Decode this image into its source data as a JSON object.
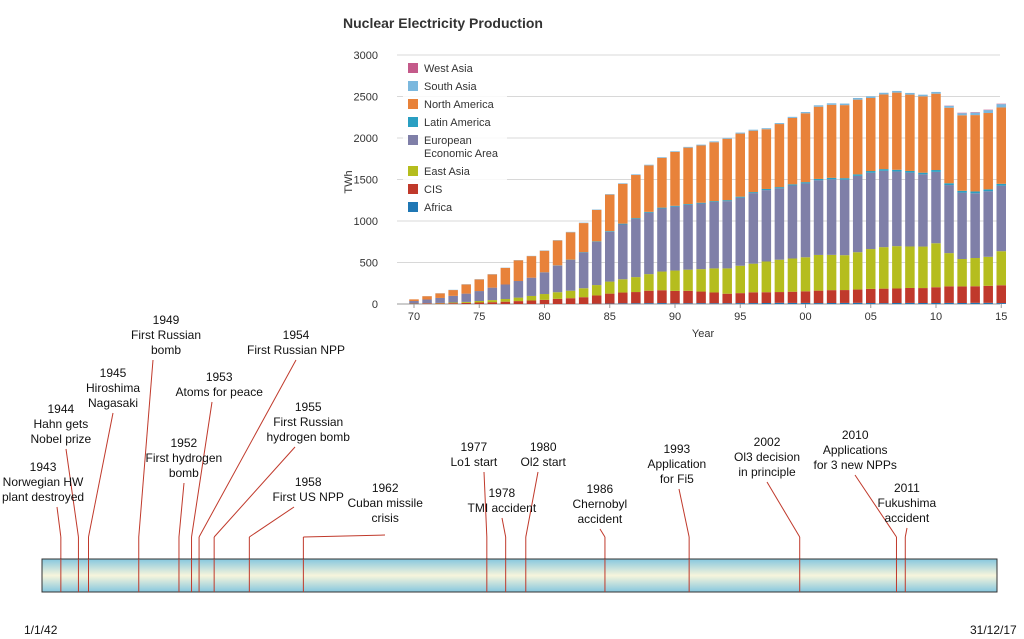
{
  "chart_data": {
    "type": "bar",
    "stacked": true,
    "title": "Nuclear Electricity Production",
    "xlabel": "Year",
    "ylabel": "TWh",
    "ylim": [
      0,
      3000
    ],
    "yticks": [
      0,
      500,
      1000,
      1500,
      2000,
      2500,
      3000
    ],
    "xtick_labels": [
      "70",
      "75",
      "80",
      "85",
      "90",
      "95",
      "00",
      "05",
      "10",
      "15"
    ],
    "xtick_years": [
      1970,
      1975,
      1980,
      1985,
      1990,
      1995,
      2000,
      2005,
      2010,
      2015
    ],
    "legend_position": "top-left",
    "categories": [
      1970,
      1971,
      1972,
      1973,
      1974,
      1975,
      1976,
      1977,
      1978,
      1979,
      1980,
      1981,
      1982,
      1983,
      1984,
      1985,
      1986,
      1987,
      1988,
      1989,
      1990,
      1991,
      1992,
      1993,
      1994,
      1995,
      1996,
      1997,
      1998,
      1999,
      2000,
      2001,
      2002,
      2003,
      2004,
      2005,
      2006,
      2007,
      2008,
      2009,
      2010,
      2011,
      2012,
      2013,
      2014,
      2015
    ],
    "series": [
      {
        "name": "Africa",
        "color": "#1f77b4",
        "values": [
          0,
          0,
          0,
          0,
          0,
          0,
          0,
          0,
          0,
          0,
          0,
          0,
          0,
          0,
          3,
          5,
          8,
          9,
          10,
          11,
          8,
          9,
          10,
          9,
          9,
          11,
          11,
          12,
          14,
          13,
          13,
          11,
          12,
          13,
          14,
          12,
          10,
          12,
          13,
          12,
          12,
          13,
          12,
          14,
          14,
          11
        ]
      },
      {
        "name": "CIS",
        "color": "#c0392b",
        "values": [
          4,
          6,
          8,
          10,
          13,
          18,
          22,
          28,
          35,
          42,
          50,
          62,
          70,
          82,
          100,
          120,
          130,
          135,
          150,
          155,
          150,
          150,
          140,
          130,
          115,
          120,
          130,
          130,
          130,
          135,
          140,
          150,
          155,
          155,
          160,
          170,
          175,
          175,
          180,
          180,
          190,
          200,
          200,
          200,
          205,
          215
        ]
      },
      {
        "name": "East Asia",
        "color": "#b5bd1e",
        "values": [
          2,
          3,
          5,
          8,
          12,
          18,
          25,
          32,
          42,
          55,
          70,
          80,
          90,
          108,
          125,
          145,
          160,
          180,
          200,
          225,
          245,
          255,
          270,
          290,
          305,
          330,
          345,
          370,
          390,
          400,
          410,
          430,
          425,
          420,
          450,
          480,
          500,
          510,
          500,
          500,
          530,
          400,
          330,
          340,
          350,
          410
        ]
      },
      {
        "name": "European Economic Area",
        "color": "#7f7fa8",
        "values": [
          30,
          45,
          60,
          80,
          100,
          120,
          150,
          175,
          200,
          220,
          260,
          320,
          370,
          430,
          520,
          600,
          660,
          700,
          740,
          760,
          770,
          780,
          790,
          800,
          810,
          820,
          850,
          860,
          860,
          880,
          890,
          900,
          910,
          910,
          920,
          920,
          920,
          900,
          890,
          870,
          860,
          820,
          800,
          780,
          790,
          790
        ]
      },
      {
        "name": "Latin America",
        "color": "#2a9fc2",
        "values": [
          0,
          0,
          0,
          0,
          0,
          0,
          0,
          0,
          0,
          0,
          2,
          3,
          4,
          5,
          6,
          8,
          10,
          10,
          10,
          10,
          10,
          10,
          10,
          10,
          12,
          12,
          12,
          14,
          14,
          14,
          15,
          16,
          18,
          18,
          18,
          20,
          20,
          20,
          20,
          20,
          22,
          22,
          22,
          22,
          22,
          22
        ]
      },
      {
        "name": "North America",
        "color": "#e8823a",
        "values": [
          20,
          40,
          55,
          70,
          110,
          140,
          160,
          200,
          250,
          260,
          260,
          300,
          330,
          350,
          380,
          440,
          480,
          520,
          560,
          600,
          650,
          680,
          690,
          710,
          740,
          760,
          740,
          720,
          760,
          800,
          830,
          870,
          880,
          880,
          900,
          880,
          900,
          930,
          920,
          920,
          920,
          910,
          910,
          920,
          920,
          920
        ]
      },
      {
        "name": "South Asia",
        "color": "#7bb8de",
        "values": [
          0,
          1,
          2,
          3,
          3,
          3,
          3,
          3,
          3,
          3,
          4,
          4,
          5,
          5,
          5,
          6,
          7,
          8,
          8,
          8,
          8,
          9,
          10,
          10,
          10,
          12,
          12,
          12,
          12,
          13,
          15,
          17,
          18,
          19,
          20,
          20,
          20,
          20,
          20,
          20,
          21,
          22,
          25,
          30,
          35,
          40
        ]
      },
      {
        "name": "West Asia",
        "color": "#c45a8a",
        "values": [
          0,
          0,
          0,
          0,
          0,
          0,
          0,
          0,
          0,
          0,
          0,
          0,
          0,
          0,
          0,
          0,
          0,
          0,
          0,
          0,
          0,
          0,
          0,
          0,
          0,
          0,
          0,
          0,
          0,
          0,
          0,
          0,
          0,
          0,
          0,
          0,
          0,
          0,
          0,
          0,
          0,
          3,
          5,
          5,
          5,
          5
        ]
      }
    ],
    "legend_order": [
      "West Asia",
      "South Asia",
      "North America",
      "Latin America",
      "European Economic Area",
      "East Asia",
      "CIS",
      "Africa"
    ],
    "legend_labels": {
      "West Asia": [
        "West Asia"
      ],
      "South Asia": [
        "South Asia"
      ],
      "North America": [
        "North America"
      ],
      "Latin America": [
        "Latin America"
      ],
      "European Economic Area": [
        "European",
        "Economic Area"
      ],
      "East Asia": [
        "East Asia"
      ],
      "CIS": [
        "CIS"
      ],
      "Africa": [
        "Africa"
      ]
    }
  },
  "timeline": {
    "start_label": "1/1/42",
    "end_label": "31/12/17",
    "start_year": 1942,
    "end_year": 2018,
    "events": [
      {
        "id": "1943",
        "year": 1943.5,
        "lines": [
          "1943",
          "Norwegian HW",
          "plant destroyed"
        ]
      },
      {
        "id": "1944",
        "year": 1944.9,
        "lines": [
          "1944",
          "Hahn gets",
          "Nobel prize"
        ]
      },
      {
        "id": "1945",
        "year": 1945.7,
        "lines": [
          "1945",
          "Hiroshima",
          "Nagasaki"
        ]
      },
      {
        "id": "1949",
        "year": 1949.7,
        "lines": [
          "1949",
          "First Russian",
          "bomb"
        ]
      },
      {
        "id": "1952",
        "year": 1952.9,
        "lines": [
          "1952",
          "First hydrogen",
          "bomb"
        ]
      },
      {
        "id": "1953",
        "year": 1953.9,
        "lines": [
          "1953",
          "Atoms for peace"
        ]
      },
      {
        "id": "1954",
        "year": 1954.5,
        "lines": [
          "1954",
          "First Russian NPP"
        ]
      },
      {
        "id": "1955",
        "year": 1955.7,
        "lines": [
          "1955",
          "First Russian",
          "hydrogen bomb"
        ]
      },
      {
        "id": "1958",
        "year": 1958.5,
        "lines": [
          "1958",
          "First US NPP"
        ]
      },
      {
        "id": "1962",
        "year": 1962.8,
        "lines": [
          "1962",
          "Cuban missile",
          "crisis"
        ]
      },
      {
        "id": "1977",
        "year": 1977.4,
        "lines": [
          "1977",
          "Lo1 start"
        ]
      },
      {
        "id": "1978",
        "year": 1978.9,
        "lines": [
          "1978",
          "TMI accident"
        ]
      },
      {
        "id": "1980",
        "year": 1980.5,
        "lines": [
          "1980",
          "Ol2 start"
        ]
      },
      {
        "id": "1986",
        "year": 1986.8,
        "lines": [
          "1986",
          "Chernobyl",
          "accident"
        ]
      },
      {
        "id": "1993",
        "year": 1993.5,
        "lines": [
          "1993",
          "Application",
          "for Fi5"
        ]
      },
      {
        "id": "2002",
        "year": 2002.3,
        "lines": [
          "2002",
          "Ol3 decision",
          "in principle"
        ]
      },
      {
        "id": "2010",
        "year": 2010.0,
        "lines": [
          "2010",
          "Applications",
          "for 3 new NPPs"
        ]
      },
      {
        "id": "2011",
        "year": 2010.7,
        "lines": [
          "2011",
          "Fukushima",
          "accident"
        ]
      }
    ]
  }
}
